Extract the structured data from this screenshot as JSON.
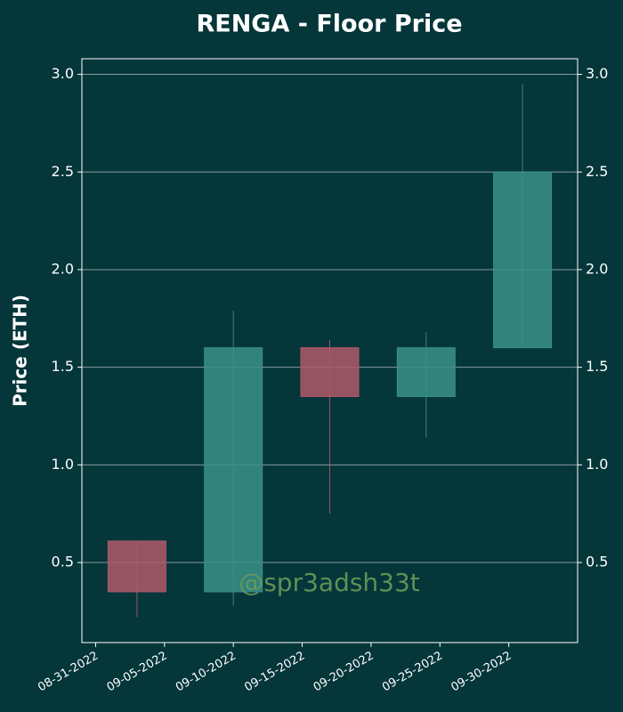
{
  "chart_data": {
    "type": "candlestick",
    "title": "RENGA - Floor Price",
    "y_label": "Price (ETH)",
    "annotation": "@spr3adsh33t",
    "x": [
      "2022-09-03",
      "2022-09-10",
      "2022-09-17",
      "2022-09-24",
      "2022-10-01"
    ],
    "open": [
      0.61,
      0.35,
      1.6,
      1.35,
      1.6
    ],
    "high": [
      0.61,
      1.79,
      1.64,
      1.68,
      2.95
    ],
    "low": [
      0.22,
      0.28,
      0.75,
      1.14,
      1.6
    ],
    "close": [
      0.35,
      1.6,
      1.35,
      1.6,
      2.5
    ],
    "up_color": "#3a9188",
    "down_color": "#b0596a",
    "xlim": [
      "2022-08-30",
      "2022-10-05"
    ],
    "xticks": [
      {
        "value": "2022-08-31",
        "label": "08-31-2022"
      },
      {
        "value": "2022-09-05",
        "label": "09-05-2022"
      },
      {
        "value": "2022-09-10",
        "label": "09-10-2022"
      },
      {
        "value": "2022-09-15",
        "label": "09-15-2022"
      },
      {
        "value": "2022-09-20",
        "label": "09-20-2022"
      },
      {
        "value": "2022-09-25",
        "label": "09-25-2022"
      },
      {
        "value": "2022-09-30",
        "label": "09-30-2022"
      }
    ],
    "ylim": [
      0.09,
      3.08
    ],
    "yticks": [
      0.5,
      1.0,
      1.5,
      2.0,
      2.5,
      3.0
    ],
    "grid": true
  }
}
